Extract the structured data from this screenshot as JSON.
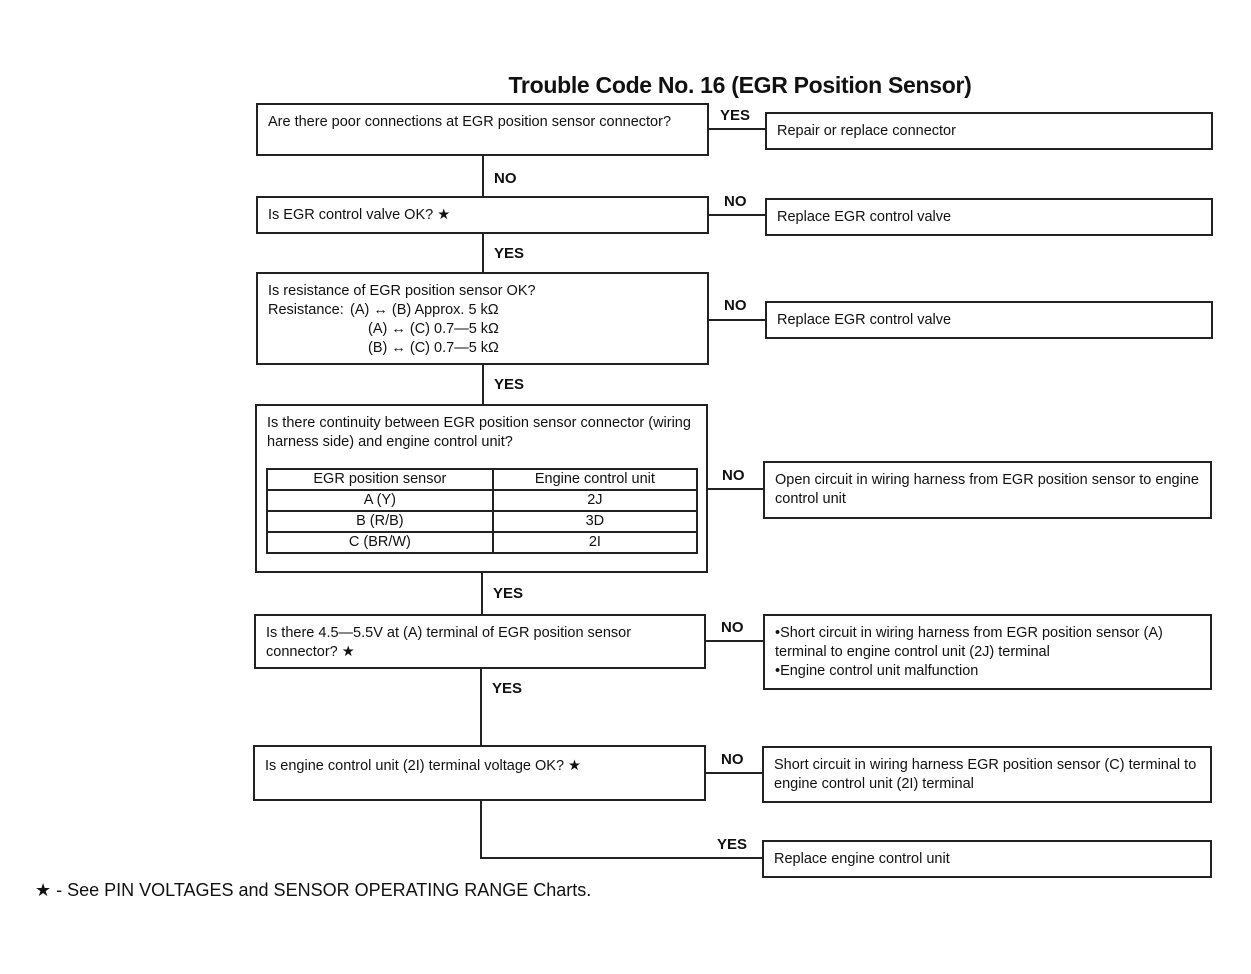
{
  "title": "Trouble Code No. 16 (EGR Position Sensor)",
  "questions": [
    {
      "text": "Are there poor connections at EGR position sensor connector?"
    },
    {
      "text": "Is EGR control valve OK? ★"
    },
    {
      "text": "Is resistance of EGR position sensor OK?",
      "resistance_label": "Resistance:",
      "resistances": [
        "(A) ↔ (B) Approx. 5 kΩ",
        "(A) ↔ (C) 0.7—5 kΩ",
        "(B) ↔ (C) 0.7—5 kΩ"
      ]
    },
    {
      "text": "Is there continuity between EGR position sensor connector (wiring harness side) and engine control unit?",
      "table": {
        "headers": [
          "EGR position sensor",
          "Engine control unit"
        ],
        "rows": [
          [
            "A (Y)",
            "2J"
          ],
          [
            "B (R/B)",
            "3D"
          ],
          [
            "C (BR/W)",
            "2I"
          ]
        ]
      }
    },
    {
      "text": "Is there 4.5—5.5V at (A) terminal of EGR position sensor connector? ★"
    },
    {
      "text": "Is engine control unit (2I) terminal voltage OK? ★"
    }
  ],
  "results": [
    "Repair or replace connector",
    "Replace EGR control valve",
    "Replace EGR control valve",
    "Open circuit in wiring harness from EGR position sensor to engine control unit",
    [
      "•Short circuit in wiring harness from EGR position sensor (A) terminal to engine control unit (2J) terminal",
      "•Engine control unit malfunction"
    ],
    "Short circuit in wiring harness EGR position sensor (C) terminal to engine control unit (2I) terminal",
    "Replace engine control unit"
  ],
  "branch_labels": {
    "q1_side": "YES",
    "q1_down": "NO",
    "q2_side": "NO",
    "q2_down": "YES",
    "q3_side": "NO",
    "q3_down": "YES",
    "q4_side": "NO",
    "q4_down": "YES",
    "q5_side": "NO",
    "q5_down": "YES",
    "q6_side": "NO",
    "q6_down": "YES"
  },
  "footnote": "★ - See PIN VOLTAGES and SENSOR OPERATING RANGE Charts."
}
